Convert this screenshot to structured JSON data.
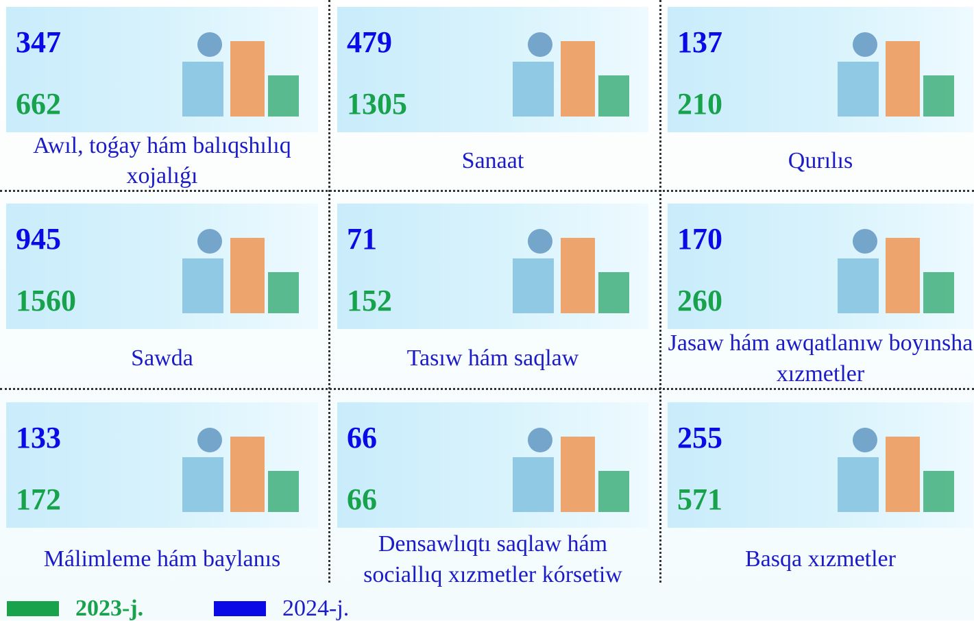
{
  "tiles": [
    {
      "top": 347,
      "bottom": 662,
      "label": "Awıl, toǵay hám balıqshılıq xojalıǵı"
    },
    {
      "top": 479,
      "bottom": 1305,
      "label": "Sanaat"
    },
    {
      "top": 137,
      "bottom": 210,
      "label": "Qurılıs"
    },
    {
      "top": 945,
      "bottom": 1560,
      "label": "Sawda"
    },
    {
      "top": 71,
      "bottom": 152,
      "label": "Tasıw hám saqlaw"
    },
    {
      "top": 170,
      "bottom": 260,
      "label": "Jasaw hám awqatlanıw boyınsha xızmetler"
    },
    {
      "top": 133,
      "bottom": 172,
      "label": "Málimleme hám baylanıs"
    },
    {
      "top": 66,
      "bottom": 66,
      "label": "Densawlıqtı saqlaw hám sociallıq xızmetler kórsetiw"
    },
    {
      "top": 255,
      "bottom": 571,
      "label": "Basqa xızmetler"
    }
  ],
  "legend": [
    {
      "label": "2023-j.",
      "color": "#17a24b"
    },
    {
      "label": "2024-j.",
      "color": "#0a0ae6"
    }
  ]
}
